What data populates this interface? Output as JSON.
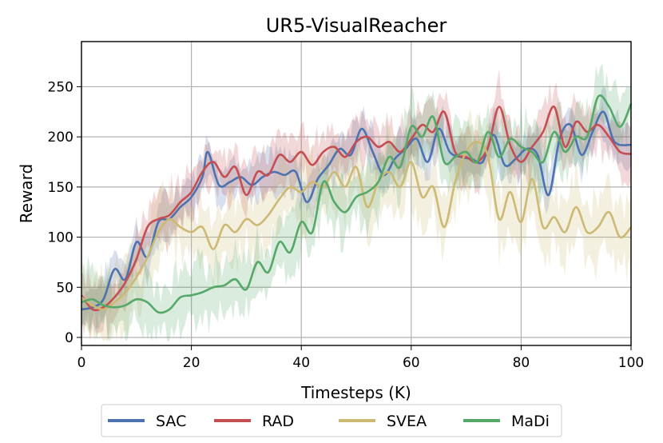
{
  "chart_data": {
    "type": "line",
    "title": "UR5-VisualReacher",
    "xlabel": "Timesteps (K)",
    "ylabel": "Reward",
    "xlim": [
      0,
      100
    ],
    "ylim": [
      -8,
      295
    ],
    "xticks": [
      0,
      20,
      40,
      60,
      80,
      100
    ],
    "yticks": [
      0,
      50,
      100,
      150,
      200,
      250
    ],
    "grid": true,
    "legend_position": "bottom-center",
    "series": [
      {
        "name": "SAC",
        "color": "#4c72b0",
        "x": [
          0,
          2,
          4,
          6,
          8,
          10,
          12,
          14,
          16,
          18,
          20,
          22,
          23,
          25,
          27,
          29,
          31,
          33,
          35,
          37,
          39,
          41,
          43,
          45,
          47,
          49,
          51,
          53,
          55,
          57,
          59,
          61,
          63,
          65,
          67,
          69,
          71,
          73,
          75,
          77,
          79,
          81,
          83,
          85,
          87,
          89,
          91,
          93,
          95,
          97,
          100
        ],
        "y": [
          28,
          30,
          38,
          68,
          58,
          95,
          80,
          115,
          118,
          130,
          140,
          160,
          185,
          152,
          155,
          160,
          152,
          160,
          165,
          162,
          165,
          135,
          158,
          172,
          188,
          182,
          208,
          185,
          162,
          178,
          188,
          198,
          175,
          208,
          185,
          180,
          178,
          175,
          202,
          172,
          178,
          188,
          182,
          142,
          198,
          212,
          182,
          205,
          225,
          195,
          192
        ],
        "band": 18
      },
      {
        "name": "RAD",
        "color": "#c44e52",
        "x": [
          0,
          2,
          4,
          6,
          8,
          10,
          12,
          14,
          16,
          18,
          20,
          22,
          24,
          26,
          28,
          30,
          32,
          34,
          36,
          38,
          40,
          42,
          44,
          46,
          48,
          50,
          52,
          54,
          56,
          58,
          60,
          62,
          64,
          66,
          68,
          70,
          72,
          74,
          76,
          78,
          80,
          82,
          84,
          86,
          88,
          90,
          92,
          94,
          96,
          98,
          100
        ],
        "y": [
          42,
          28,
          30,
          40,
          55,
          78,
          110,
          118,
          122,
          135,
          145,
          165,
          175,
          160,
          170,
          142,
          165,
          162,
          182,
          175,
          185,
          172,
          185,
          190,
          180,
          195,
          200,
          190,
          195,
          185,
          198,
          212,
          205,
          225,
          185,
          180,
          175,
          190,
          230,
          192,
          175,
          190,
          205,
          230,
          190,
          215,
          205,
          212,
          200,
          185,
          183
        ],
        "band": 20
      },
      {
        "name": "SVEA",
        "color": "#ccb974",
        "x": [
          0,
          2,
          4,
          6,
          8,
          10,
          12,
          14,
          16,
          18,
          20,
          22,
          24,
          26,
          28,
          30,
          32,
          34,
          36,
          38,
          40,
          42,
          44,
          46,
          48,
          50,
          52,
          54,
          56,
          58,
          60,
          62,
          64,
          66,
          68,
          70,
          72,
          74,
          76,
          78,
          80,
          82,
          84,
          86,
          88,
          90,
          92,
          94,
          96,
          98,
          100
        ],
        "y": [
          40,
          32,
          28,
          35,
          45,
          60,
          80,
          105,
          118,
          110,
          105,
          110,
          88,
          112,
          105,
          118,
          112,
          122,
          138,
          150,
          145,
          155,
          150,
          165,
          150,
          170,
          130,
          155,
          165,
          150,
          175,
          140,
          150,
          110,
          155,
          185,
          195,
          180,
          118,
          145,
          115,
          158,
          110,
          120,
          105,
          130,
          105,
          110,
          125,
          100,
          110
        ],
        "band": 28
      },
      {
        "name": "MaDi",
        "color": "#55a868",
        "x": [
          0,
          2,
          4,
          6,
          8,
          10,
          12,
          14,
          16,
          18,
          20,
          22,
          24,
          26,
          28,
          30,
          32,
          34,
          36,
          38,
          40,
          42,
          44,
          46,
          48,
          50,
          52,
          54,
          56,
          58,
          60,
          62,
          64,
          66,
          68,
          70,
          72,
          74,
          76,
          78,
          80,
          82,
          84,
          86,
          88,
          90,
          92,
          94,
          96,
          98,
          100
        ],
        "y": [
          35,
          38,
          32,
          30,
          32,
          38,
          35,
          25,
          28,
          40,
          42,
          45,
          50,
          52,
          58,
          48,
          75,
          65,
          95,
          85,
          115,
          105,
          155,
          135,
          125,
          140,
          145,
          155,
          180,
          170,
          210,
          200,
          220,
          175,
          180,
          185,
          175,
          205,
          180,
          198,
          190,
          185,
          175,
          205,
          185,
          200,
          200,
          240,
          230,
          210,
          233
        ],
        "band": 25
      }
    ]
  }
}
